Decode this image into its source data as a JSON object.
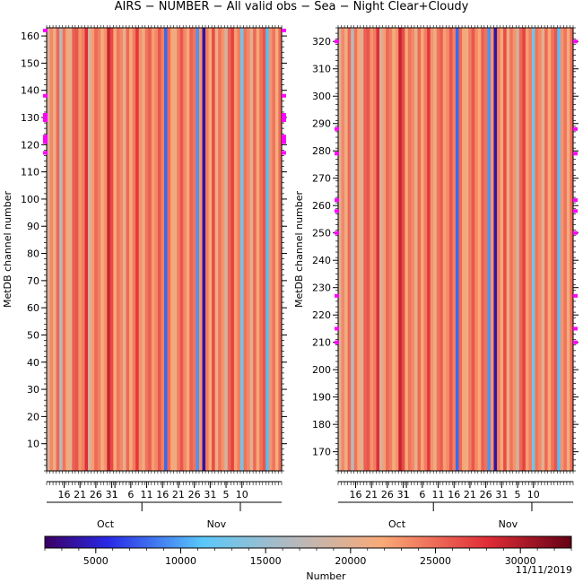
{
  "title": "AIRS − NUMBER − All valid obs − Sea − Night Clear+Cloudy",
  "date_stamp": "11/11/2019",
  "chart_data": [
    {
      "type": "heatmap",
      "ylabel": "MetDB channel number",
      "ylim": [
        0,
        163
      ],
      "y_ticks": [
        10,
        20,
        30,
        40,
        50,
        60,
        70,
        80,
        90,
        100,
        110,
        120,
        130,
        140,
        150,
        160
      ],
      "x_ticks": [
        "16",
        "21",
        "26",
        "31",
        "1",
        "6",
        "11",
        "16",
        "21",
        "26",
        "31",
        "5",
        "10"
      ],
      "months": [
        "Oct",
        "Nov"
      ],
      "marker_channels": [
        117,
        121,
        122,
        123,
        129,
        130,
        131,
        138,
        162
      ]
    },
    {
      "type": "heatmap",
      "ylabel": "MetDB channel number",
      "ylim": [
        163,
        325
      ],
      "y_ticks": [
        170,
        180,
        190,
        200,
        210,
        220,
        230,
        240,
        250,
        260,
        270,
        280,
        290,
        300,
        310,
        320
      ],
      "x_ticks": [
        "16",
        "21",
        "26",
        "31",
        "1",
        "6",
        "11",
        "16",
        "21",
        "26",
        "31",
        "5",
        "10"
      ],
      "months": [
        "Oct",
        "Nov"
      ],
      "marker_channels": [
        210,
        215,
        227,
        250,
        258,
        262,
        279,
        288,
        320
      ]
    }
  ],
  "daily_number": [
    19500,
    23500,
    21000,
    25000,
    17000,
    24500,
    22000,
    20000,
    25500,
    26000,
    23000,
    24000,
    28000,
    19000,
    22500,
    25000,
    24000,
    21500,
    23000,
    29000,
    26500,
    22000,
    24500,
    23500,
    20500,
    25000,
    22000,
    24000,
    27500,
    23000,
    21000,
    24500,
    25500,
    22500,
    23500,
    26000,
    24000,
    8000,
    25000,
    22000,
    21000,
    24000,
    26000,
    23500,
    22000,
    25500,
    24500,
    9500,
    23000,
    3800,
    24000,
    22000,
    26500,
    21000,
    24500,
    23000,
    19000,
    25000,
    27000,
    22500,
    24000,
    13000,
    24500,
    23500,
    20000,
    25000,
    22000,
    24500,
    26000,
    11000,
    23000,
    24500,
    21500,
    25000
  ],
  "colorbar": {
    "label": "Number",
    "min": 2000,
    "max": 33000,
    "ticks": [
      5000,
      10000,
      15000,
      20000,
      25000,
      30000
    ]
  }
}
